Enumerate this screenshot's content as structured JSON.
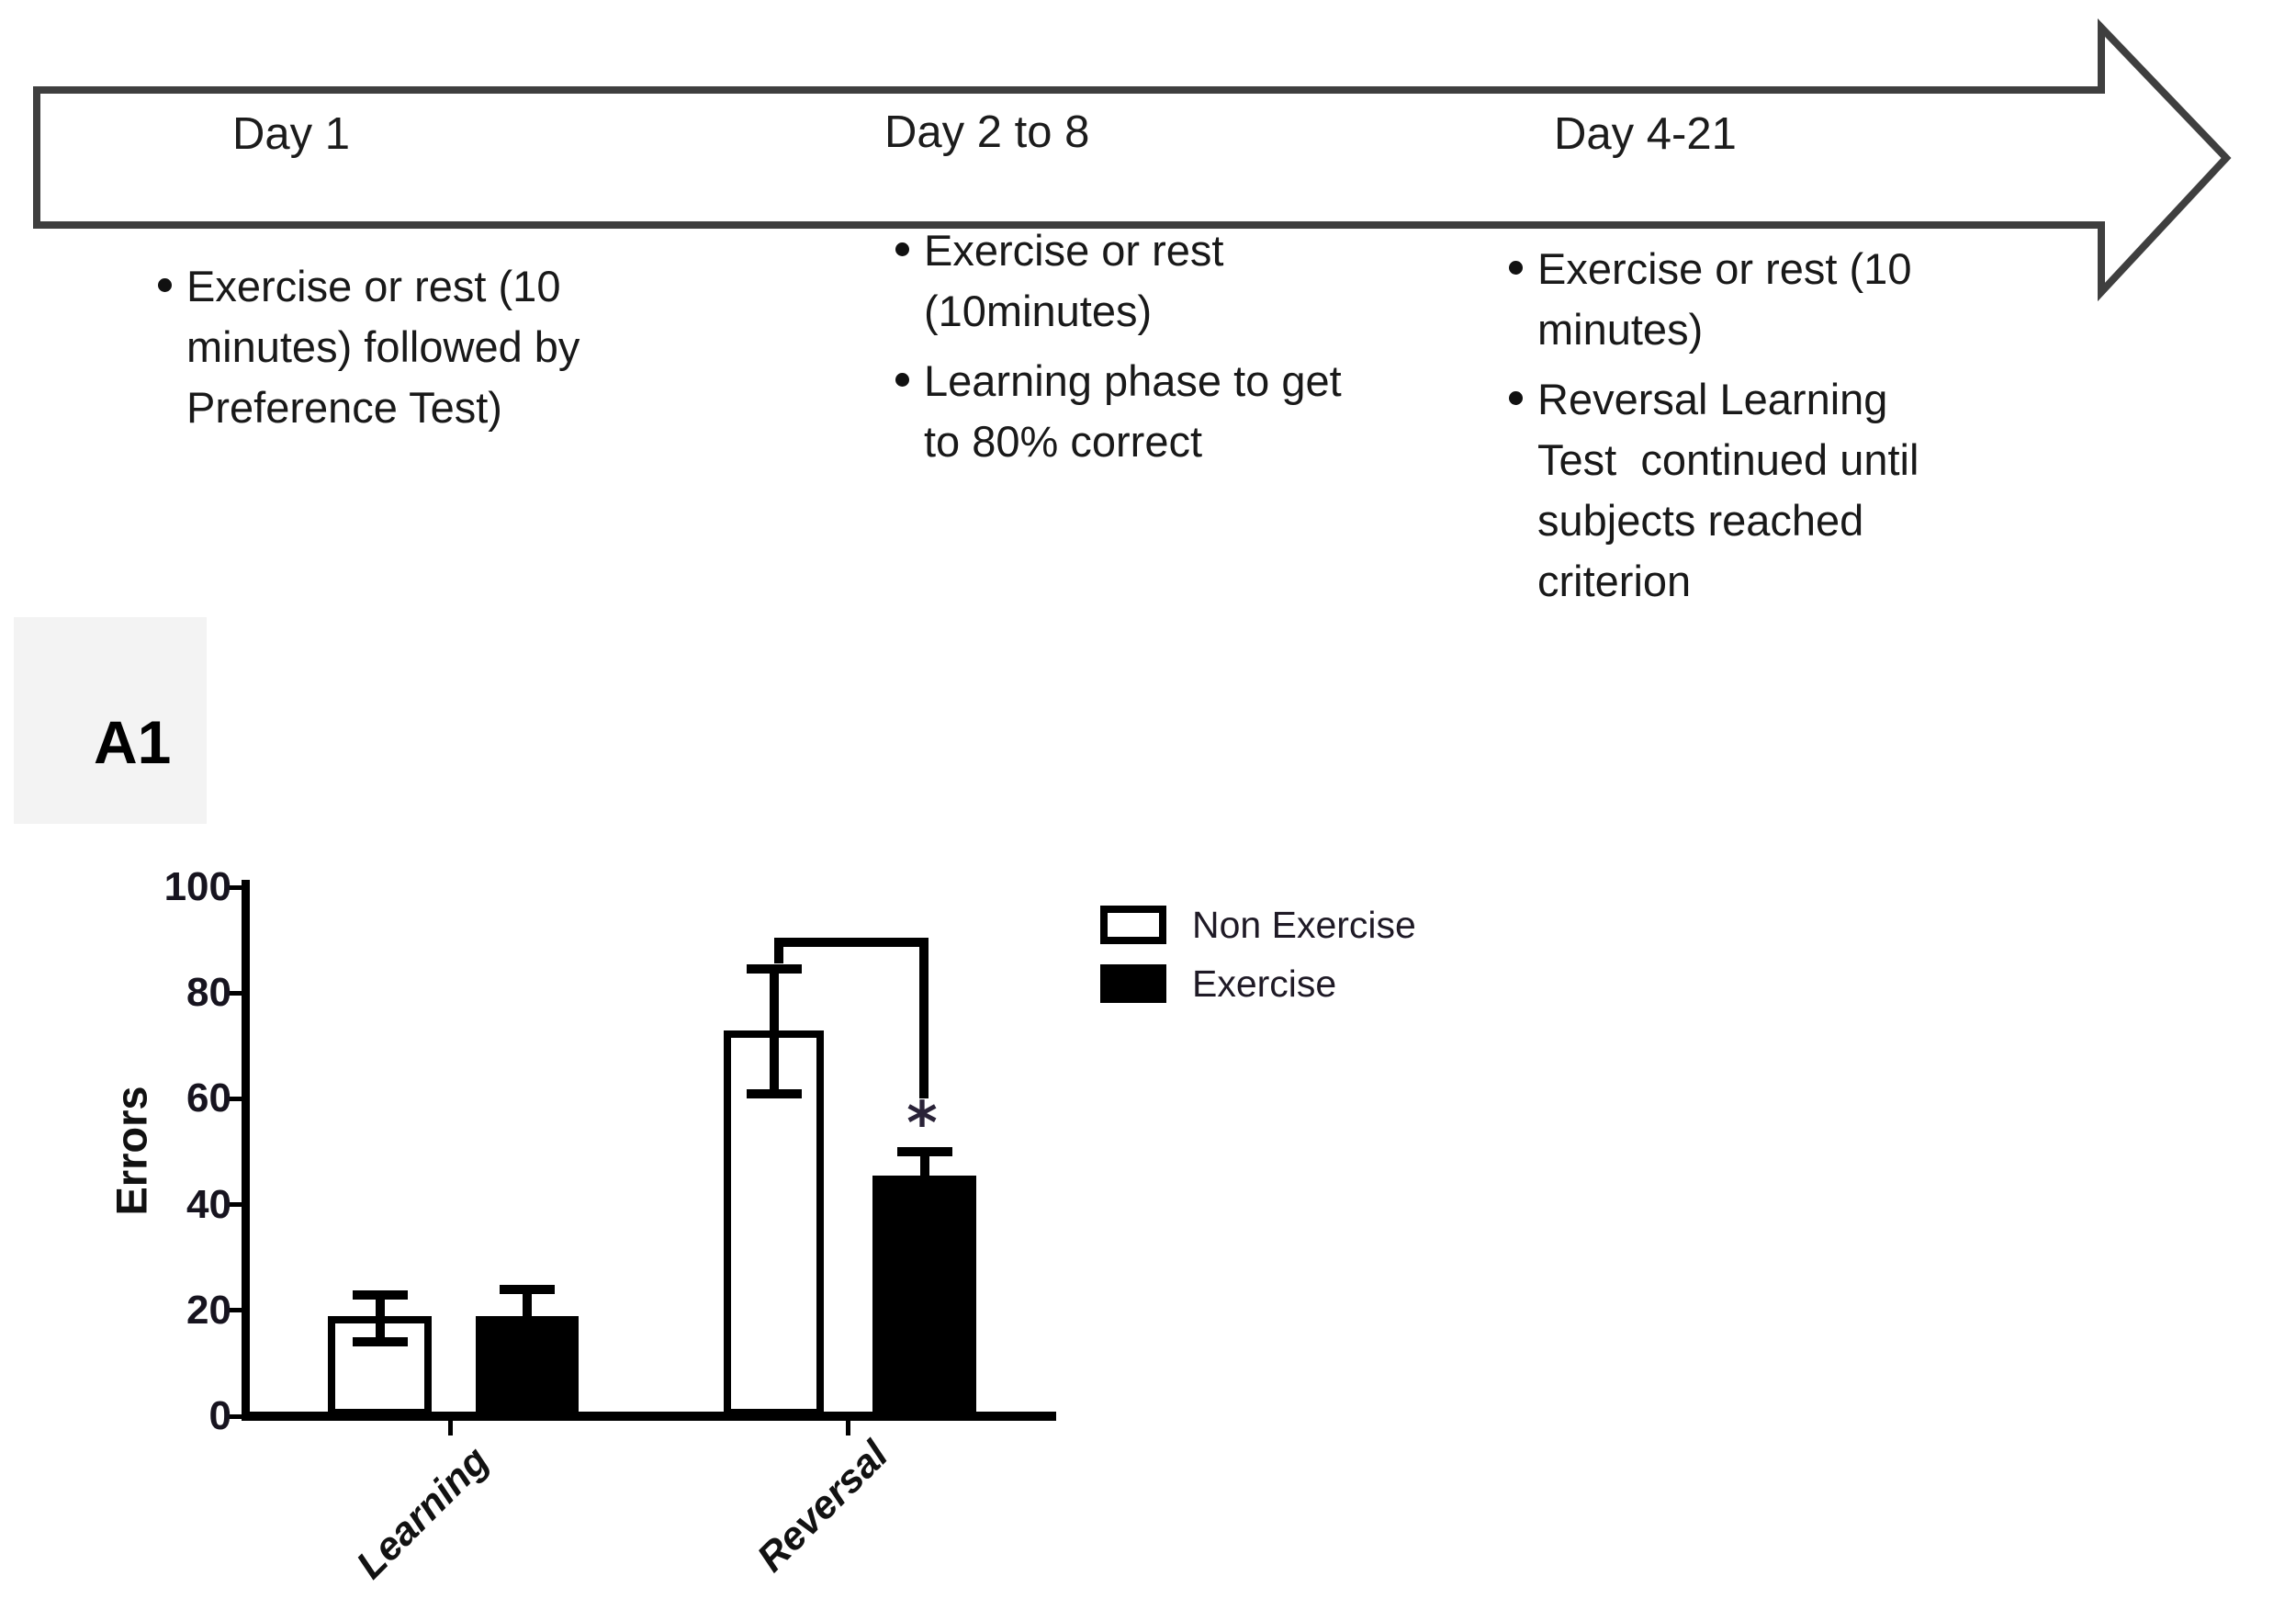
{
  "page": {
    "background": "#ffffff"
  },
  "timeline": {
    "arrow_color": "#3f3f3f",
    "phases": [
      {
        "label": "Day 1",
        "bullets": [
          {
            "lines": [
              "Exercise or rest (10",
              "minutes) followed by",
              "Preference Test)"
            ]
          }
        ]
      },
      {
        "label": "Day 2 to 8",
        "bullets": [
          {
            "lines": [
              "Exercise or rest",
              "(10minutes)"
            ]
          },
          {
            "lines": [
              "Learning phase to get",
              "to 80% correct"
            ]
          }
        ]
      },
      {
        "label": "Day 4-21",
        "bullets": [
          {
            "lines": [
              "Exercise or rest (10",
              "minutes)"
            ]
          },
          {
            "lines": [
              "Reversal Learning",
              "Test  continued until",
              "subjects reached",
              "criterion"
            ]
          }
        ]
      }
    ]
  },
  "panel": {
    "label": "A1"
  },
  "chart_data": {
    "type": "bar",
    "title": "",
    "xlabel": "",
    "ylabel": "Errors",
    "categories": [
      "Learning",
      "Reversal"
    ],
    "series": [
      {
        "name": "Non Exercise",
        "fill": "#ffffff",
        "values": [
          19,
          73
        ],
        "err_low": [
          14,
          61
        ],
        "err_high": [
          23,
          84.5
        ]
      },
      {
        "name": "Exercise",
        "fill": "#000000",
        "values": [
          19,
          45.5
        ],
        "err_low": [
          null,
          null
        ],
        "err_high": [
          24,
          50
        ]
      }
    ],
    "ylim": [
      0,
      100
    ],
    "yticks": [
      0,
      20,
      40,
      60,
      80,
      100
    ],
    "grid": false,
    "legend_position": "upper right",
    "significance": {
      "category": "Reversal",
      "between": [
        "Non Exercise",
        "Exercise"
      ],
      "label": "*",
      "bracket_top_value": 89.5,
      "bracket_drop_value": 60
    }
  }
}
